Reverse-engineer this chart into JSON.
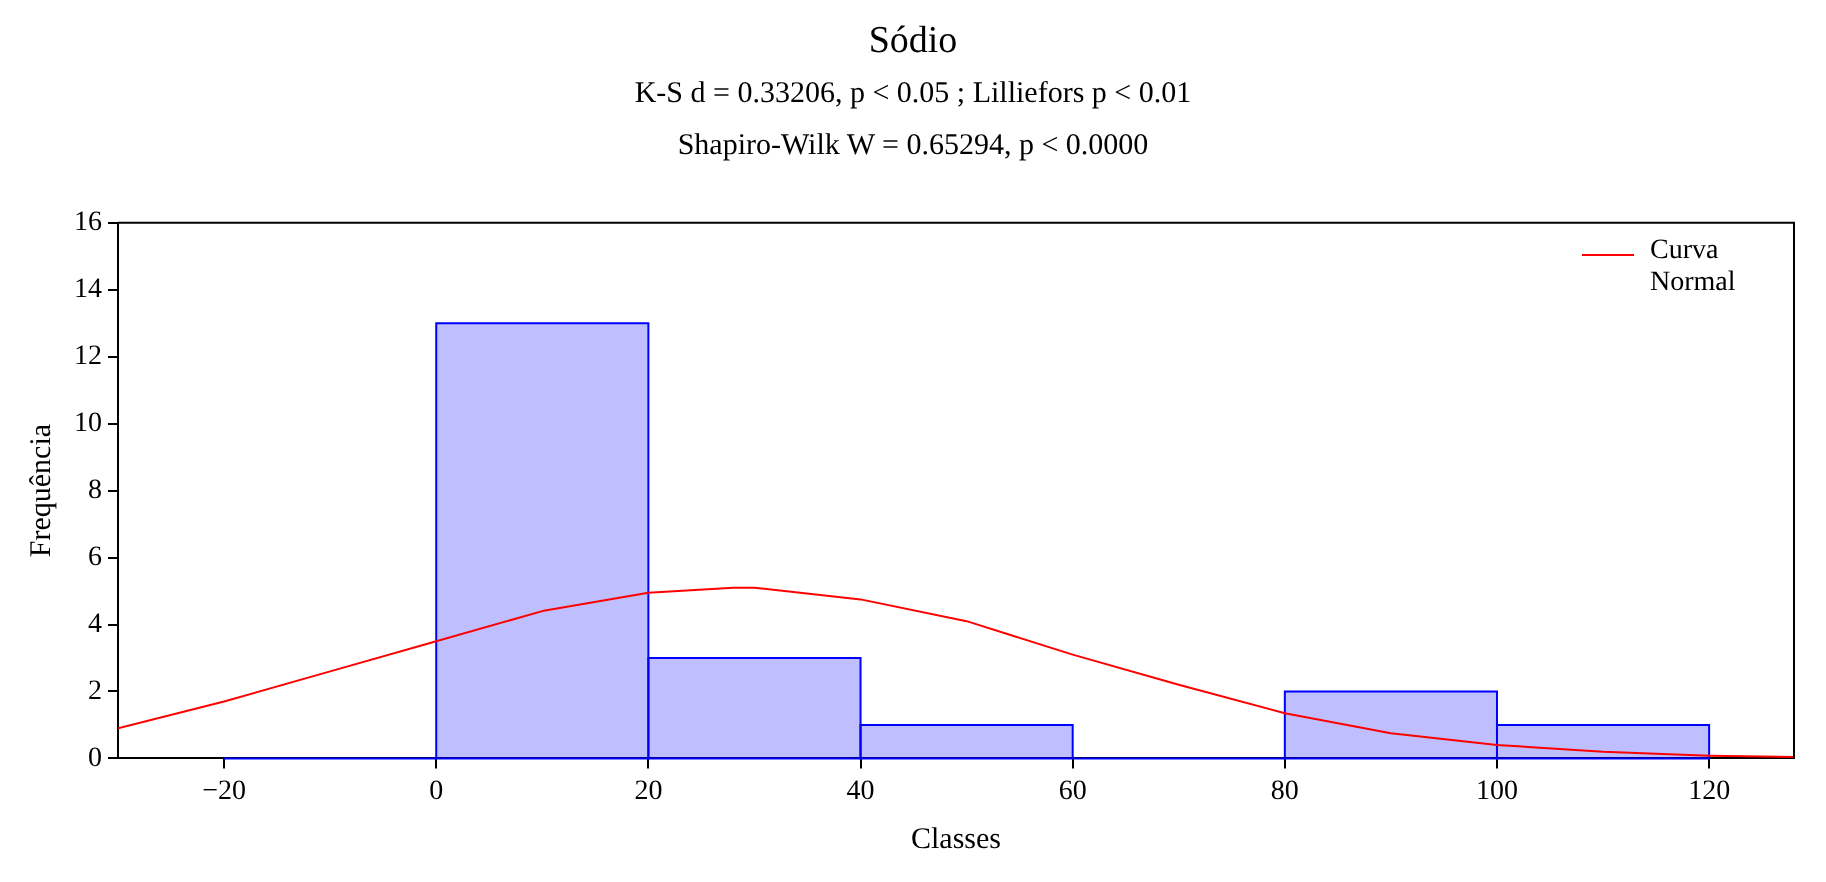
{
  "chart_data": {
    "type": "histogram",
    "title": "Sódio",
    "subtitle": "K-S d = 0.33206,  p < 0.05 ;  Lilliefors p < 0.01\nShapiro-Wilk W = 0.65294,  p < 0.0000",
    "xlabel": "Classes",
    "ylabel": "Frequência",
    "bins": [
      -20,
      0,
      20,
      40,
      60,
      80,
      100,
      120
    ],
    "values": [
      0,
      13,
      3,
      1,
      0,
      2,
      1
    ],
    "color": "#0000ff",
    "series": [
      {
        "name": "Curva Normal",
        "type": "line",
        "color": "#ff0000",
        "x": [
          -30,
          -20,
          -10,
          0,
          10,
          20,
          28,
          30,
          40,
          50,
          60,
          70,
          80,
          90,
          100,
          110,
          120,
          128
        ],
        "values": [
          0.9,
          1.7,
          2.6,
          3.5,
          4.4,
          4.95,
          5.1,
          5.1,
          4.75,
          4.1,
          3.1,
          2.2,
          1.35,
          0.75,
          0.4,
          0.2,
          0.08,
          0.04
        ]
      }
    ],
    "xlim": [
      -30,
      128
    ],
    "xticks": [
      -20,
      0,
      20,
      40,
      60,
      80,
      100,
      120
    ],
    "ylim": [
      0,
      16
    ],
    "yticks": [
      0,
      2,
      4,
      6,
      8,
      10,
      12,
      14,
      16
    ],
    "grid": false,
    "legend": "top right",
    "marker": "none",
    "line_style": "solid"
  }
}
